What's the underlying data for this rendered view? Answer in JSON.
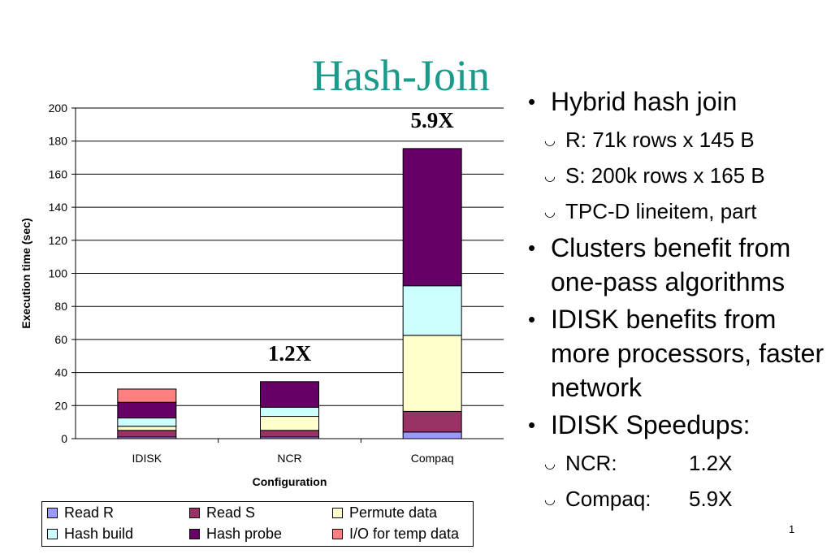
{
  "slide": {
    "title": "Hash-Join",
    "page_number": "1"
  },
  "bullets": [
    {
      "text": "Hybrid hash join",
      "sub": [
        "R: 71k rows x 145 B",
        "S: 200k rows x 165 B",
        "TPC-D lineitem, part"
      ]
    },
    {
      "text": "Clusters benefit from one-pass algorithms",
      "sub": []
    },
    {
      "text": "IDISK benefits from more processors, faster network",
      "sub": []
    },
    {
      "text": "IDISK Speedups:",
      "sub": []
    }
  ],
  "speedups": [
    {
      "label": "NCR:",
      "value": "1.2X"
    },
    {
      "label": "Compaq:",
      "value": "5.9X"
    }
  ],
  "chart_data": {
    "type": "bar",
    "stacked": true,
    "categories": [
      "IDISK",
      "NCR",
      "Compaq"
    ],
    "xlabel": "Configuration",
    "ylabel": "Execution time (sec)",
    "ylim": [
      0,
      200
    ],
    "yticks": [
      0,
      20,
      40,
      60,
      80,
      100,
      120,
      140,
      160,
      180,
      200
    ],
    "grid": true,
    "legend_position": "bottom",
    "series": [
      {
        "name": "Read R",
        "color": "#9999ff",
        "values": [
          1,
          1,
          4
        ]
      },
      {
        "name": "Read S",
        "color": "#993366",
        "values": [
          4,
          4,
          12.5
        ]
      },
      {
        "name": "Permute data",
        "color": "#ffffcc",
        "values": [
          2.5,
          8.5,
          46
        ]
      },
      {
        "name": "Hash build",
        "color": "#ccffff",
        "values": [
          5,
          5.5,
          30
        ]
      },
      {
        "name": "Hash probe",
        "color": "#660066",
        "values": [
          9.5,
          15.5,
          83
        ]
      },
      {
        "name": "I/O for temp data",
        "color": "#ff8080",
        "values": [
          8,
          0,
          0
        ]
      }
    ],
    "annotations": [
      "",
      "1.2X",
      "5.9X"
    ]
  }
}
